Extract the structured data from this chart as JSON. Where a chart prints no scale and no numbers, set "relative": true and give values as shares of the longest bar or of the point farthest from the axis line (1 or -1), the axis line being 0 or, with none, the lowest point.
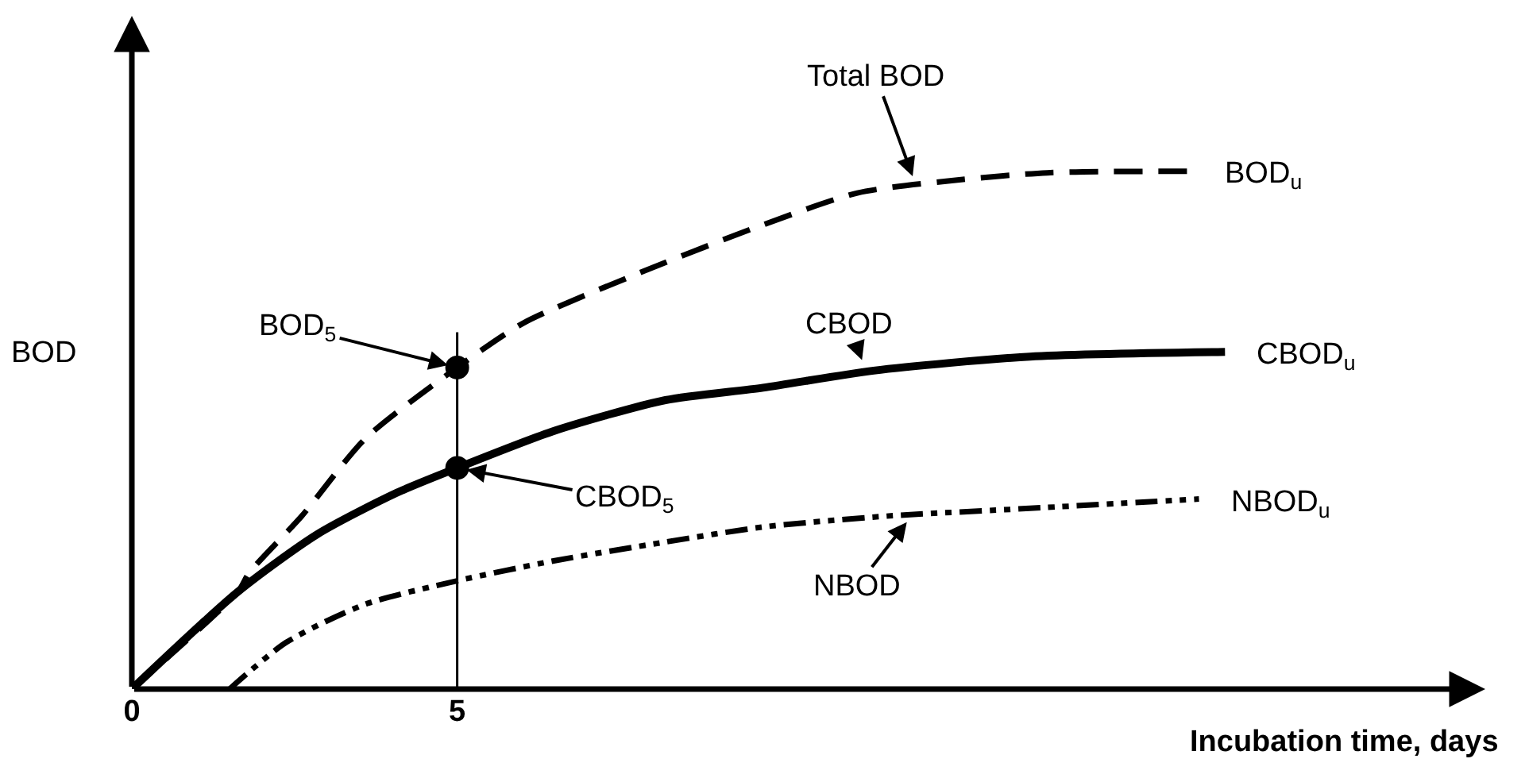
{
  "chart_data": {
    "type": "line",
    "relative": true,
    "xlabel": "Incubation time, days",
    "ylabel": "BOD",
    "xlim": [
      0,
      20.8
    ],
    "xticks": [
      0,
      5
    ],
    "marker": "none",
    "series": [
      {
        "color": "#000000",
        "line_style": "dashed",
        "x": [
          0,
          1.63,
          1.8,
          2.61,
          3.59,
          5,
          6.02,
          7.73,
          9.56,
          11.15,
          12.6,
          14.07,
          16.3
        ],
        "values": [
          0,
          0.188,
          0.224,
          0.334,
          0.484,
          0.621,
          0.707,
          0.8,
          0.89,
          0.958,
          0.982,
          0.997,
          1
        ]
      },
      {
        "color": "#000000",
        "line_style": "solid",
        "x": [
          0,
          1.63,
          2.85,
          4.07,
          5,
          6.5,
          8.2,
          9.7,
          11.4,
          13.8,
          16.8
        ],
        "values": [
          0,
          0.188,
          0.299,
          0.379,
          0.427,
          0.499,
          0.558,
          0.582,
          0.615,
          0.642,
          0.651
        ]
      },
      {
        "color": "#000000",
        "line_style": "dotted",
        "x": [
          1.5,
          2.37,
          3.59,
          5,
          6.5,
          8.2,
          9.7,
          11.6,
          13.8,
          16.4
        ],
        "values": [
          0,
          0.09,
          0.164,
          0.209,
          0.248,
          0.284,
          0.313,
          0.334,
          0.349,
          0.367
        ]
      },
      {
        "type": "scatter",
        "marker": "circle",
        "color": "#000000",
        "x": [
          5,
          5
        ],
        "values": [
          0.621,
          0.427
        ]
      }
    ],
    "ref_lines": [
      {
        "axis": "x",
        "value": 5,
        "color": "#000000"
      }
    ],
    "annotations": [
      {
        "text": "Total BOD",
        "x": 12.05,
        "y": 0.973
      },
      {
        "text": "BOD$_{u}$",
        "x": 16.3,
        "y": 1
      },
      {
        "text": "CBOD",
        "x": 11.27,
        "y": 0.618
      },
      {
        "text": "CBOD$_{u}$",
        "x": 16.8,
        "y": 0.651
      },
      {
        "text": "NBOD",
        "x": 12.0,
        "y": 0.337
      },
      {
        "text": "NBOD$_{u}$",
        "x": 16.4,
        "y": 0.367
      },
      {
        "text": "BOD$_{5}$",
        "x": 5,
        "y": 0.621
      },
      {
        "text": "CBOD$_{5}$",
        "x": 5,
        "y": 0.427
      }
    ]
  }
}
